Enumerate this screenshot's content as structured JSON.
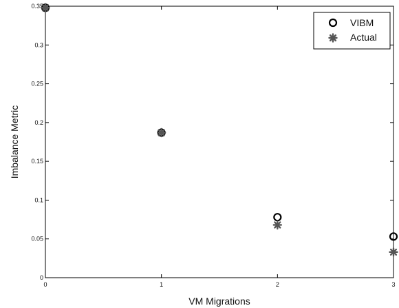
{
  "chart_data": {
    "type": "scatter",
    "title": "",
    "xlabel": "VM Migrations",
    "ylabel": "Imbalance Metric",
    "xlim": [
      0,
      3
    ],
    "ylim": [
      0,
      0.35
    ],
    "x_ticks": [
      "0",
      "1",
      "2",
      "3"
    ],
    "y_ticks": [
      "0",
      "0.05",
      "0.1",
      "0.15",
      "0.2",
      "0.25",
      "0.3",
      "0.35"
    ],
    "grid": false,
    "legend_position": "top-right",
    "series": [
      {
        "name": "VIBM",
        "marker": "circle",
        "color": "#000000",
        "x": [
          0,
          1,
          2,
          3
        ],
        "y": [
          0.348,
          0.187,
          0.078,
          0.053
        ]
      },
      {
        "name": "Actual",
        "marker": "asterisk",
        "color": "#555555",
        "x": [
          0,
          1,
          2,
          3
        ],
        "y": [
          0.348,
          0.187,
          0.068,
          0.033
        ]
      }
    ]
  }
}
